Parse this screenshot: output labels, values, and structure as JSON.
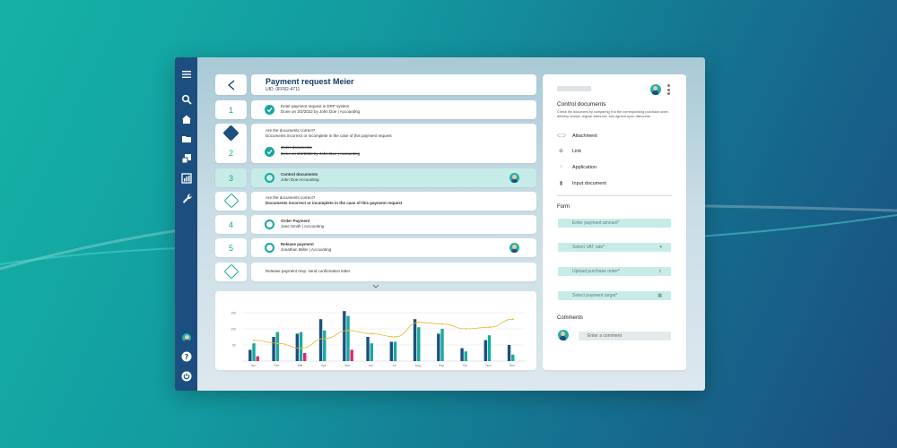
{
  "header": {
    "title": "Payment request Meier",
    "uid": "UID: 0FF82-4711"
  },
  "steps": [
    {
      "num": "1",
      "line1": "Enter payment request in ERP system",
      "line2": "Done on 3/2/2022 by John Doe | Accounting"
    },
    {
      "num": "2",
      "question": "Are the documents correct?",
      "answer": "Documents incorrect or incomplete in the case of this payment request",
      "line1": "Order documents",
      "line2": "Done on 3/4/2022 by John Doe | Accounting"
    },
    {
      "num": "3",
      "line1": "Control documents",
      "line2": "John Doe Accounting"
    },
    {
      "question": "Are the documents correct?",
      "answer": "Documents incorrect or incomplete in the case of this payment request"
    },
    {
      "num": "4",
      "line1": "Order Payment",
      "line2": "Jane Smith | Accounting"
    },
    {
      "num": "5",
      "line1": "Release payment",
      "line2": "Jonathan Miller | Accounting"
    },
    {
      "line1": "Release payment resp. send confirmation letter"
    }
  ],
  "panel": {
    "title": "Control documents",
    "description": "Check the document by comparing it to the corresponding purchase order, delivery receipt, regular sales tax, and agreed-upon discounts.",
    "items": [
      "Attachment",
      "Link",
      "Application",
      "Input document"
    ],
    "form_label": "Form",
    "fields": [
      "Enter payment amount*",
      "Select VAT rate*",
      "Upload purchase order*",
      "Select payment target*"
    ],
    "comments_label": "Comments",
    "comment_placeholder": "Enter a comment"
  },
  "chart_data": {
    "type": "bar",
    "categories": [
      "Jan",
      "Feb",
      "Mar",
      "Apr",
      "Mai",
      "Jun",
      "Jul",
      "Aug",
      "Sep",
      "Oct",
      "Nov",
      "Dec"
    ],
    "ytick_labels": [
      "150",
      "100",
      "50"
    ],
    "ylim": [
      0,
      200
    ],
    "series": [
      {
        "values": [
          35,
          75,
          85,
          130,
          155,
          75,
          60,
          130,
          85,
          40,
          65,
          50
        ],
        "color": "#1c4f80"
      },
      {
        "values": [
          55,
          90,
          90,
          95,
          140,
          55,
          60,
          105,
          100,
          30,
          80,
          20
        ],
        "color": "#16aa9f"
      },
      {
        "values": [
          15,
          0,
          25,
          0,
          35,
          0,
          0,
          0,
          0,
          0,
          0,
          0
        ],
        "color": "#e0266e"
      }
    ],
    "line": {
      "values": [
        65,
        55,
        40,
        70,
        95,
        85,
        75,
        120,
        115,
        100,
        105,
        130
      ],
      "color": "#f1b52e"
    }
  },
  "colors": {
    "accent": "#15a79c",
    "navy": "#1c4f80",
    "highlight": "#c7ece8"
  }
}
